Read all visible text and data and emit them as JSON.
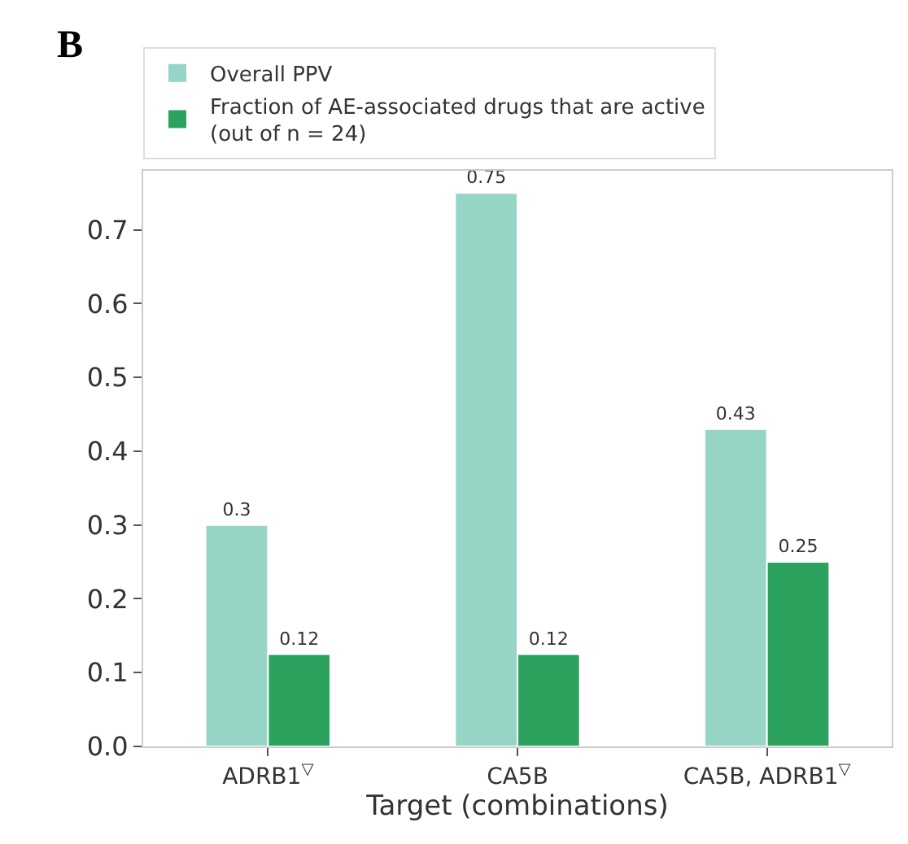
{
  "chart_data": {
    "type": "bar",
    "title": "B",
    "xlabel": "Target (combinations)",
    "categories": [
      "ADRB1$^{▽}$",
      "CA5B",
      "CA5B, ADRB1$^{▽}$"
    ],
    "series": [
      {
        "name": "Overall PPV",
        "color": "#96d5c5",
        "values": [
          0.3,
          0.75,
          0.43
        ],
        "value_labels": [
          "0.3",
          "0.75",
          "0.43"
        ]
      },
      {
        "name": "Fraction of AE-associated drugs that are active\n(out of n = 24)",
        "color": "#2ca25f",
        "values": [
          0.125,
          0.125,
          0.25
        ],
        "value_labels": [
          "0.12",
          "0.12",
          "0.25"
        ]
      }
    ],
    "ylim": [
      0,
      0.78
    ],
    "yticks": [
      {
        "value": 0,
        "label": "0.0"
      },
      0.1,
      0.2,
      0.3,
      0.4,
      0.5,
      0.6,
      0.7
    ],
    "legend": "top"
  }
}
